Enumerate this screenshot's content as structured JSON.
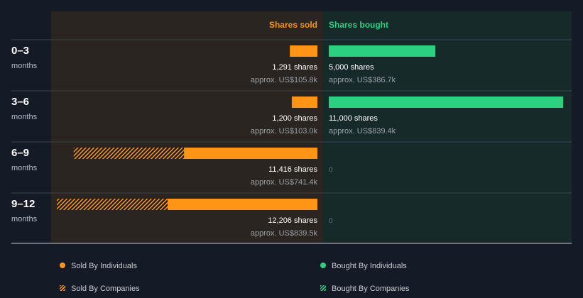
{
  "chart_data": {
    "type": "bar",
    "orientation": "horizontal-diverging",
    "headers": {
      "sold": "Shares sold",
      "bought": "Shares bought"
    },
    "categories": [
      {
        "label": "0–3",
        "unit": "months"
      },
      {
        "label": "3–6",
        "unit": "months"
      },
      {
        "label": "6–9",
        "unit": "months"
      },
      {
        "label": "9–12",
        "unit": "months"
      }
    ],
    "series": [
      {
        "name": "Sold By Individuals",
        "values": [
          1291,
          1200,
          6250,
          7017
        ]
      },
      {
        "name": "Sold By Companies",
        "values": [
          0,
          0,
          5166,
          5189
        ]
      },
      {
        "name": "Bought By Individuals",
        "values": [
          5000,
          11000,
          0,
          0
        ]
      },
      {
        "name": "Bought By Companies",
        "values": [
          0,
          0,
          0,
          0
        ]
      }
    ],
    "sold_totals": [
      {
        "shares": "1,291 shares",
        "approx": "approx. US$105.8k"
      },
      {
        "shares": "1,200 shares",
        "approx": "approx. US$103.0k"
      },
      {
        "shares": "11,416 shares",
        "approx": "approx. US$741.4k"
      },
      {
        "shares": "12,206 shares",
        "approx": "approx. US$839.5k"
      }
    ],
    "bought_totals": [
      {
        "shares": "5,000 shares",
        "approx": "approx. US$386.7k"
      },
      {
        "shares": "11,000 shares",
        "approx": "approx. US$839.4k"
      },
      {
        "shares": "0",
        "approx": ""
      },
      {
        "shares": "0",
        "approx": ""
      }
    ],
    "xlim": [
      0,
      12206
    ],
    "legend": {
      "placement": "bottom",
      "items": [
        {
          "label": "Sold By Individuals",
          "style": "dot",
          "color": "#ff9416"
        },
        {
          "label": "Bought By Individuals",
          "style": "dot",
          "color": "#2bd180"
        },
        {
          "label": "Sold By Companies",
          "style": "hatch",
          "color": "#ff9416"
        },
        {
          "label": "Bought By Companies",
          "style": "hatch",
          "color": "#2bd180"
        }
      ]
    },
    "colors": {
      "sold": "#ff9416",
      "bought": "#2bd180",
      "sold_panel": "#2a2520",
      "bought_panel": "#172a2a",
      "background": "#151b26"
    }
  }
}
